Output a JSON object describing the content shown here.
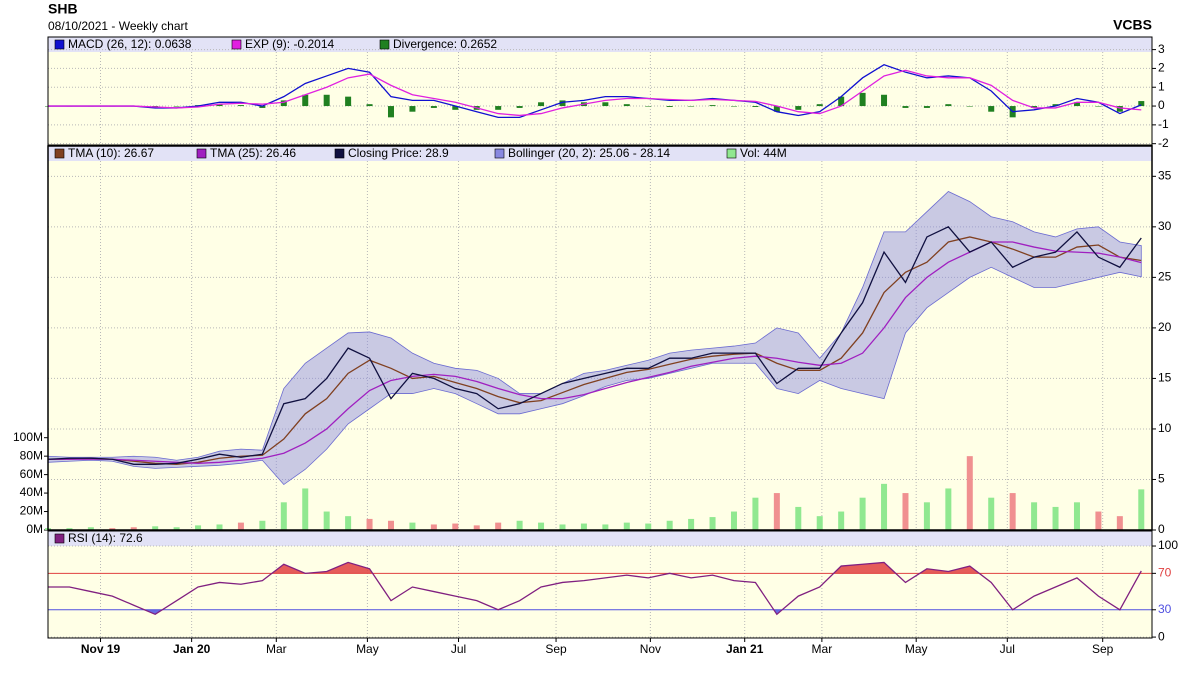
{
  "header": {
    "title": "SHB",
    "subtitle": "08/10/2021 - Weekly chart",
    "source": "VCBS"
  },
  "x_axis": {
    "x": [
      0,
      2,
      4,
      6,
      8,
      10,
      12,
      14,
      16,
      18,
      20,
      22,
      24,
      26,
      28,
      30,
      32,
      34,
      36,
      38,
      40,
      42,
      44,
      46,
      48,
      50,
      52,
      54,
      56,
      58,
      60,
      62,
      64,
      66,
      68,
      70,
      72,
      74,
      76,
      78,
      80,
      82,
      84,
      86,
      88,
      90,
      92,
      94,
      96,
      98,
      100,
      102
    ],
    "xlim": [
      0,
      103
    ],
    "xticks": [
      {
        "value": 4.9,
        "label": "Nov 19"
      },
      {
        "value": 13.4,
        "label": "Jan 20"
      },
      {
        "value": 21.3,
        "label": "Mar"
      },
      {
        "value": 29.8,
        "label": "May"
      },
      {
        "value": 38.3,
        "label": "Jul"
      },
      {
        "value": 47.4,
        "label": "Sep"
      },
      {
        "value": 56.2,
        "label": "Nov"
      },
      {
        "value": 65,
        "label": "Jan 21"
      },
      {
        "value": 72.2,
        "label": "Mar"
      },
      {
        "value": 81,
        "label": "May"
      },
      {
        "value": 89.5,
        "label": "Jul"
      },
      {
        "value": 98.4,
        "label": "Sep"
      }
    ]
  },
  "chart_data": [
    {
      "type": "line",
      "ylim": [
        -2.07,
        3.67
      ],
      "yticks": [
        3,
        2,
        1,
        0,
        -1,
        -2
      ],
      "grid": true,
      "series": [
        {
          "name": "MACD (26, 12): 0.0638",
          "color": "#1010d0",
          "kind": "line",
          "values": [
            0,
            0,
            0,
            0,
            0,
            -0.1,
            -0.1,
            0,
            0.2,
            0.2,
            0,
            0.5,
            1.2,
            1.6,
            2.0,
            1.8,
            0.5,
            0.3,
            0.3,
            0,
            -0.3,
            -0.6,
            -0.6,
            -0.2,
            0.2,
            0.3,
            0.5,
            0.5,
            0.4,
            0.3,
            0.3,
            0.4,
            0.3,
            0.2,
            -0.3,
            -0.5,
            -0.3,
            0.5,
            1.5,
            2.2,
            1.8,
            1.5,
            1.6,
            1.5,
            0.8,
            -0.3,
            -0.2,
            0.0,
            0.4,
            0.2,
            -0.4,
            0.0638
          ]
        },
        {
          "name": "EXP (9): -0.2014",
          "color": "#e020e0",
          "kind": "line",
          "values": [
            0,
            0,
            0,
            0,
            0,
            -0.05,
            -0.1,
            -0.05,
            0.1,
            0.15,
            0.1,
            0.2,
            0.6,
            1.0,
            1.5,
            1.7,
            1.1,
            0.6,
            0.4,
            0.2,
            -0.1,
            -0.4,
            -0.5,
            -0.4,
            -0.1,
            0.1,
            0.3,
            0.4,
            0.4,
            0.35,
            0.3,
            0.35,
            0.3,
            0.25,
            0,
            -0.3,
            -0.4,
            0,
            0.8,
            1.6,
            1.9,
            1.6,
            1.5,
            1.5,
            1.1,
            0.3,
            -0.1,
            -0.1,
            0.2,
            0.2,
            -0.1,
            -0.2014
          ]
        },
        {
          "name": "Divergence: 0.2652",
          "color": "#208020",
          "kind": "bar",
          "values": [
            0,
            0,
            0,
            0,
            0,
            -0.05,
            0,
            0.05,
            0.1,
            0.05,
            -0.1,
            0.3,
            0.6,
            0.6,
            0.5,
            0.1,
            -0.6,
            -0.3,
            -0.1,
            -0.2,
            -0.2,
            -0.2,
            -0.1,
            0.2,
            0.3,
            0.2,
            0.2,
            0.1,
            0,
            -0.05,
            0,
            0.05,
            0,
            -0.05,
            -0.3,
            -0.2,
            0.1,
            0.5,
            0.7,
            0.6,
            -0.1,
            -0.1,
            0.1,
            0,
            -0.3,
            -0.6,
            -0.1,
            0.1,
            0.2,
            0,
            -0.3,
            0.2652
          ]
        }
      ]
    },
    {
      "type": "line",
      "ylim": [
        0,
        38
      ],
      "yticks": [
        35,
        30,
        25,
        20,
        15,
        10,
        5,
        0
      ],
      "grid": true,
      "y2lim": [
        0,
        416
      ],
      "y2ticks": [
        {
          "value": 100,
          "label": "100M"
        },
        {
          "value": 80,
          "label": "80M"
        },
        {
          "value": 60,
          "label": "60M"
        },
        {
          "value": 40,
          "label": "40M"
        },
        {
          "value": 20,
          "label": "20M"
        },
        {
          "value": 0,
          "label": "0M"
        }
      ],
      "series": [
        {
          "name": "TMA (10): 26.67",
          "color": "#804020",
          "kind": "line",
          "values": [
            7.0,
            7.0,
            7.1,
            7.0,
            6.8,
            6.6,
            6.5,
            6.7,
            7.1,
            7.3,
            7.4,
            9.0,
            11.5,
            13.0,
            15.5,
            16.8,
            16.0,
            15.0,
            15.2,
            14.6,
            14.0,
            13.2,
            12.6,
            12.8,
            13.6,
            14.4,
            15.0,
            15.6,
            15.9,
            16.4,
            16.9,
            17.2,
            17.4,
            17.5,
            16.5,
            15.8,
            15.8,
            17.0,
            19.5,
            23.5,
            25.5,
            26.5,
            28.5,
            29.0,
            28.5,
            27.8,
            27.0,
            27.0,
            28.0,
            28.2,
            27.0,
            26.67
          ]
        },
        {
          "name": "TMA (25): 26.46",
          "color": "#a020c0",
          "kind": "line",
          "values": [
            7.0,
            7.0,
            7.0,
            7.0,
            6.9,
            6.8,
            6.7,
            6.6,
            6.7,
            6.9,
            7.1,
            7.6,
            8.6,
            10.0,
            12.0,
            13.8,
            14.8,
            15.2,
            15.4,
            15.2,
            14.7,
            14.0,
            13.4,
            13.0,
            13.0,
            13.4,
            14.0,
            14.6,
            15.1,
            15.6,
            16.2,
            16.6,
            17.0,
            17.2,
            17.0,
            16.6,
            16.3,
            16.5,
            17.5,
            20.0,
            23.0,
            25.0,
            26.5,
            27.5,
            28.5,
            28.5,
            28.0,
            27.6,
            27.5,
            27.4,
            27.0,
            26.46
          ]
        },
        {
          "name": "Closing Price: 28.9",
          "color": "#101040",
          "kind": "line",
          "values": [
            7.0,
            7.1,
            7.1,
            7.0,
            6.5,
            6.5,
            6.6,
            7.0,
            7.5,
            7.2,
            7.5,
            12.5,
            13.0,
            15.0,
            18.0,
            17.0,
            13.0,
            15.5,
            15.0,
            14.0,
            13.5,
            12.0,
            12.5,
            13.5,
            14.5,
            15.0,
            15.5,
            16.0,
            16.0,
            17.0,
            17.0,
            17.5,
            17.5,
            17.5,
            14.5,
            16.0,
            16.0,
            19.5,
            22.5,
            27.5,
            24.5,
            29.0,
            30.0,
            27.5,
            28.5,
            26.0,
            27.0,
            27.5,
            29.5,
            27.0,
            26.0,
            28.9
          ]
        },
        {
          "name": "Bollinger (20, 2): 25.06 - 28.14",
          "color": "#8888e0",
          "kind": "band",
          "values": [
            7.3,
            7.2,
            7.2,
            7.2,
            7.3,
            7.2,
            6.9,
            7.2,
            7.8,
            8.0,
            7.9,
            14.0,
            16.5,
            18.0,
            19.5,
            19.6,
            19.0,
            17.5,
            16.5,
            16.0,
            15.8,
            15.0,
            13.5,
            13.5,
            14.5,
            15.5,
            15.8,
            16.3,
            16.8,
            17.5,
            17.8,
            18.0,
            18.2,
            18.5,
            20.0,
            19.5,
            17.0,
            19.5,
            24.0,
            29.5,
            29.5,
            31.5,
            33.5,
            32.5,
            31.0,
            30.5,
            29.5,
            29.0,
            29.8,
            30.0,
            28.5,
            28.14
          ],
          "lower": [
            6.7,
            6.8,
            6.9,
            6.8,
            6.3,
            6.1,
            6.2,
            6.3,
            6.4,
            6.6,
            6.9,
            4.5,
            6.0,
            8.0,
            10.5,
            12.0,
            13.5,
            13.5,
            14.0,
            13.5,
            12.5,
            11.5,
            11.5,
            12.0,
            12.5,
            13.3,
            14.2,
            14.8,
            15.0,
            15.5,
            16.0,
            16.5,
            16.5,
            16.5,
            14.0,
            13.5,
            14.8,
            14.0,
            13.5,
            13.0,
            19.5,
            22.0,
            23.5,
            25.0,
            26.0,
            25.0,
            24.0,
            24.0,
            24.5,
            25.0,
            25.5,
            25.06
          ]
        },
        {
          "name": "Vol: 44M",
          "color": "#90e890",
          "down_color": "#f09090",
          "kind": "bar",
          "axis": "y2",
          "values": [
            2,
            2,
            3,
            2,
            3,
            4,
            3,
            5,
            6,
            8,
            10,
            30,
            45,
            20,
            15,
            12,
            10,
            8,
            6,
            7,
            5,
            8,
            10,
            8,
            6,
            7,
            6,
            8,
            7,
            10,
            12,
            14,
            20,
            35,
            40,
            25,
            15,
            20,
            35,
            50,
            40,
            30,
            45,
            80,
            35,
            40,
            30,
            25,
            30,
            20,
            15,
            44
          ]
        }
      ]
    },
    {
      "type": "line",
      "ylim": [
        -1,
        116.5
      ],
      "yticks": [
        100,
        70,
        30,
        0
      ],
      "grid": true,
      "reference_lines": [
        {
          "value": 70,
          "color": "#e04040"
        },
        {
          "value": 30,
          "color": "#5050e0"
        }
      ],
      "series": [
        {
          "name": "RSI (14): 72.6",
          "color": "#802080",
          "kind": "line",
          "values": [
            55,
            55,
            50,
            45,
            35,
            25,
            40,
            55,
            60,
            58,
            62,
            80,
            70,
            72,
            82,
            75,
            40,
            55,
            50,
            45,
            40,
            30,
            40,
            55,
            60,
            62,
            65,
            68,
            65,
            70,
            65,
            68,
            62,
            60,
            25,
            45,
            55,
            78,
            80,
            82,
            60,
            75,
            72,
            78,
            60,
            30,
            45,
            55,
            65,
            45,
            30,
            72.6
          ]
        }
      ]
    }
  ]
}
